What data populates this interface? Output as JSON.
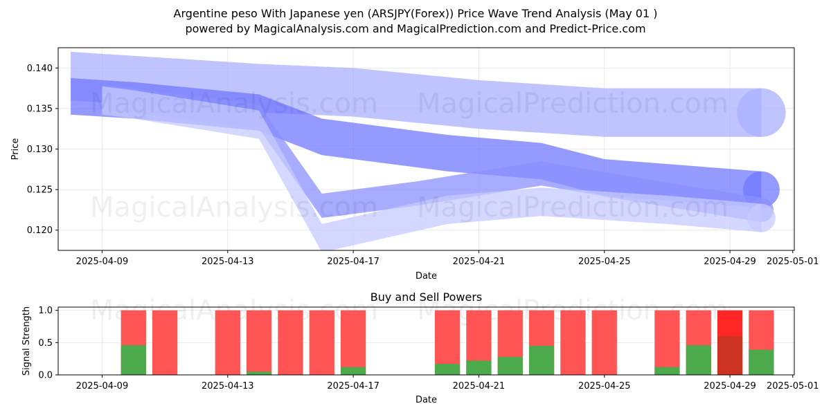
{
  "title_line1": "Argentine peso With Japanese yen (ARSJPY(Forex)) Price Wave Trend Analysis (May 01 )",
  "title_line2": "powered by MagicalAnalysis.com and MagicalPrediction.com and Predict-Price.com",
  "watermarks": [
    "MagicalAnalysis.com",
    "MagicalPrediction.com"
  ],
  "chart_data": [
    {
      "type": "area",
      "title": "",
      "xlabel": "Date",
      "ylabel": "Price",
      "x_ticks": [
        "2025-04-09",
        "2025-04-13",
        "2025-04-17",
        "2025-04-21",
        "2025-04-25",
        "2025-04-29",
        "2025-05-01"
      ],
      "y_ticks": [
        "0.120",
        "0.125",
        "0.130",
        "0.135",
        "0.140"
      ],
      "ylim": [
        0.1175,
        0.1425
      ],
      "xlim": [
        "2025-04-08",
        "2025-05-01"
      ],
      "grid": true,
      "bands": [
        {
          "color": "#aab0ff",
          "x": [
            "2025-04-08",
            "2025-04-10",
            "2025-04-14",
            "2025-04-17",
            "2025-04-21",
            "2025-04-25",
            "2025-04-30"
          ],
          "y": [
            0.139,
            0.1385,
            0.1375,
            0.137,
            0.1355,
            0.1345,
            0.1345
          ],
          "width": 0.006
        },
        {
          "color": "#7278ff",
          "x": [
            "2025-04-08",
            "2025-04-10",
            "2025-04-14",
            "2025-04-16",
            "2025-04-20",
            "2025-04-23",
            "2025-04-25",
            "2025-04-30"
          ],
          "y": [
            0.1365,
            0.136,
            0.1345,
            0.1315,
            0.1295,
            0.1285,
            0.1265,
            0.125
          ],
          "width": 0.0045
        },
        {
          "color": "#8a90ff",
          "x": [
            "2025-04-09",
            "2025-04-10",
            "2025-04-14",
            "2025-04-16",
            "2025-04-19",
            "2025-04-23",
            "2025-04-26",
            "2025-04-30"
          ],
          "y": [
            0.1365,
            0.136,
            0.134,
            0.123,
            0.1245,
            0.127,
            0.125,
            0.1225
          ],
          "width": 0.003
        },
        {
          "color": "#c6caff",
          "x": [
            "2025-04-09",
            "2025-04-10",
            "2025-04-14",
            "2025-04-16",
            "2025-04-20",
            "2025-04-23",
            "2025-04-27",
            "2025-04-30"
          ],
          "y": [
            0.136,
            0.1355,
            0.133,
            0.119,
            0.1225,
            0.1235,
            0.1225,
            0.1215
          ],
          "width": 0.0035
        }
      ]
    },
    {
      "type": "bar",
      "title": "Buy and Sell Powers",
      "xlabel": "Date",
      "ylabel": "Signal Strength",
      "x_ticks": [
        "2025-04-09",
        "2025-04-13",
        "2025-04-17",
        "2025-04-21",
        "2025-04-25",
        "2025-04-29",
        "2025-05-01"
      ],
      "y_ticks": [
        "0.0",
        "0.5",
        "1.0"
      ],
      "ylim": [
        0,
        1.05
      ],
      "xlim": [
        "2025-04-08",
        "2025-05-01"
      ],
      "buy_color": "#4caa4c",
      "sell_color": "#ff4b4b",
      "highlight_sell_color": "#ff1a1a",
      "highlight_buy_color": "#cc3322",
      "bars": [
        {
          "date": "2025-04-10",
          "buy": 0.46
        },
        {
          "date": "2025-04-11",
          "buy": 0.0
        },
        {
          "date": "2025-04-13",
          "buy": 0.0
        },
        {
          "date": "2025-04-14",
          "buy": 0.05
        },
        {
          "date": "2025-04-15",
          "buy": 0.0
        },
        {
          "date": "2025-04-16",
          "buy": 0.0
        },
        {
          "date": "2025-04-17",
          "buy": 0.12
        },
        {
          "date": "2025-04-20",
          "buy": 0.17
        },
        {
          "date": "2025-04-21",
          "buy": 0.22
        },
        {
          "date": "2025-04-22",
          "buy": 0.28
        },
        {
          "date": "2025-04-23",
          "buy": 0.45
        },
        {
          "date": "2025-04-24",
          "buy": 0.0
        },
        {
          "date": "2025-04-25",
          "buy": 0.0
        },
        {
          "date": "2025-04-27",
          "buy": 0.12
        },
        {
          "date": "2025-04-28",
          "buy": 0.46
        },
        {
          "date": "2025-04-29",
          "buy": 0.6,
          "highlight": true
        },
        {
          "date": "2025-04-30",
          "buy": 0.39
        }
      ]
    }
  ]
}
